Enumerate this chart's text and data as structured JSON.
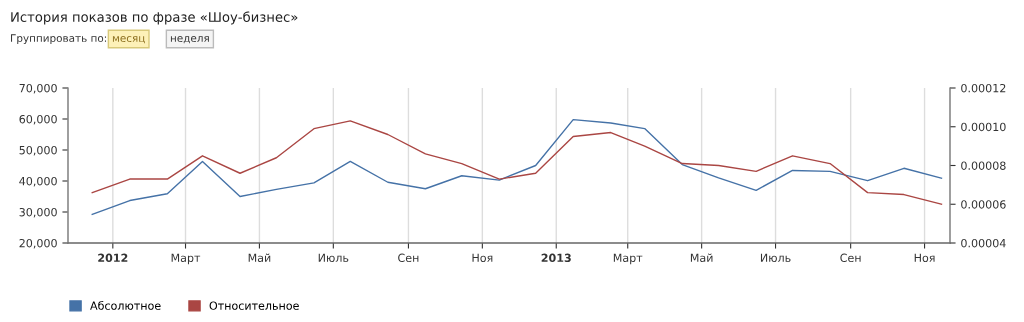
{
  "chart_data": {
    "type": "line",
    "title": "История показов по фразе «Шоу-бизнес»",
    "annotations": [
      "Группировать по:",
      "месяц",
      "неделя"
    ],
    "x": [
      "2011-12-15",
      "2012-01-15",
      "2012-02-15",
      "2012-03-15",
      "2012-04-15",
      "2012-05-15",
      "2012-06-15",
      "2012-07-15",
      "2012-08-15",
      "2012-09-15",
      "2012-10-15",
      "2012-11-15",
      "2012-12-15",
      "2013-01-15",
      "2013-02-15",
      "2013-03-15",
      "2013-04-15",
      "2013-05-15",
      "2013-06-15",
      "2013-07-15",
      "2013-08-15",
      "2013-09-15",
      "2013-10-15",
      "2013-11-15"
    ],
    "series": [
      {
        "name": "Абсолютное",
        "color": "#4572a7",
        "values": [
          29200,
          33700,
          35900,
          46300,
          35000,
          37300,
          39400,
          46300,
          39600,
          37500,
          41700,
          40300,
          45000,
          59800,
          58700,
          56900,
          45300,
          41000,
          37000,
          43400,
          43100,
          40100,
          44100,
          40900
        ]
      },
      {
        "name": "Относительное",
        "color": "#aa4643",
        "axis": "y2",
        "values": [
          6.6e-05,
          7.3e-05,
          7.3e-05,
          8.5e-05,
          7.6e-05,
          8.4e-05,
          9.9e-05,
          0.000103,
          9.6e-05,
          8.6e-05,
          8.1e-05,
          7.3e-05,
          7.6e-05,
          9.5e-05,
          9.7e-05,
          9e-05,
          8.1e-05,
          8e-05,
          7.7e-05,
          8.5e-05,
          8.1e-05,
          6.6e-05,
          6.5e-05,
          6e-05
        ]
      }
    ],
    "xlim": [
      "2011-11-25",
      "2013-11-22"
    ],
    "xticks": [
      {
        "value": "2012-01-01",
        "label": "2012"
      },
      {
        "value": "2012-03-01",
        "label": "Март"
      },
      {
        "value": "2012-05-01",
        "label": "Май"
      },
      {
        "value": "2012-07-01",
        "label": "Июль"
      },
      {
        "value": "2012-09-01",
        "label": "Сен"
      },
      {
        "value": "2012-11-01",
        "label": "Ноя"
      },
      {
        "value": "2013-01-01",
        "label": "2013"
      },
      {
        "value": "2013-03-01",
        "label": "Март"
      },
      {
        "value": "2013-05-01",
        "label": "Май"
      },
      {
        "value": "2013-07-01",
        "label": "Июль"
      },
      {
        "value": "2013-09-01",
        "label": "Сен"
      },
      {
        "value": "2013-11-01",
        "label": "Ноя"
      }
    ],
    "ylim": [
      20000,
      70000
    ],
    "yticks": [
      {
        "value": 20000,
        "label": "20,000"
      },
      {
        "value": 30000,
        "label": "30,000"
      },
      {
        "value": 40000,
        "label": "40,000"
      },
      {
        "value": 50000,
        "label": "50,000"
      },
      {
        "value": 60000,
        "label": "60,000"
      },
      {
        "value": 70000,
        "label": "70,000"
      }
    ],
    "y2lim": [
      4e-05,
      0.00012
    ],
    "y2ticks": [
      {
        "value": 4e-05,
        "label": "0.00004"
      },
      {
        "value": 6e-05,
        "label": "0.00006"
      },
      {
        "value": 8e-05,
        "label": "0.00008"
      },
      {
        "value": 0.0001,
        "label": "0.00010"
      },
      {
        "value": 0.00012,
        "label": "0.00012"
      }
    ],
    "grid": "x",
    "legend": "bottom left",
    "marker": "none",
    "line_style": "solid"
  }
}
